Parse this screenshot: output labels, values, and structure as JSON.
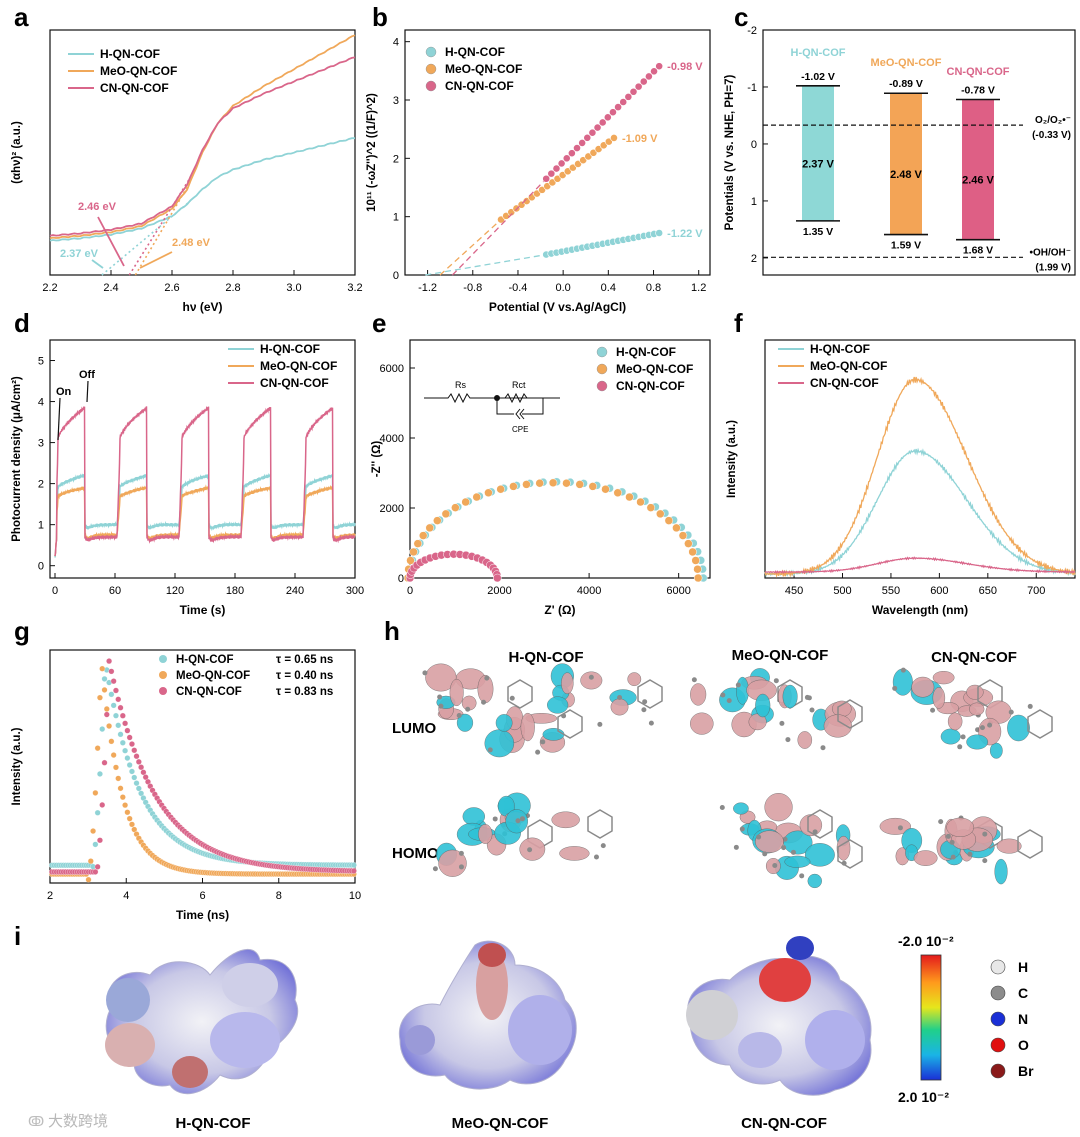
{
  "colors": {
    "h": "#8fd3d6",
    "meo": "#f0a85a",
    "cn": "#d9668a",
    "axis": "#111111",
    "h_bar": "#8ed8d6",
    "meo_bar": "#f3a456",
    "cn_bar": "#de5f85"
  },
  "panel_letters": {
    "a": "a",
    "b": "b",
    "c": "c",
    "d": "d",
    "e": "e",
    "f": "f",
    "g": "g",
    "h": "h",
    "i": "i"
  },
  "legend_names": [
    "H-QN-COF",
    "MeO-QN-COF",
    "CN-QN-COF"
  ],
  "chart_data": [
    {
      "id": "a",
      "type": "line",
      "xlabel": "hν (eV)",
      "ylabel": "(αhν)² (a.u.)",
      "xlim": [
        2.2,
        3.2
      ],
      "ylim": [
        0,
        1
      ],
      "xticks": [
        "2.2",
        "2.4",
        "2.6",
        "2.8",
        "3.0",
        "3.2"
      ],
      "series": [
        {
          "name": "H-QN-COF",
          "x": [
            2.2,
            2.3,
            2.4,
            2.5,
            2.6,
            2.65,
            2.7,
            2.75,
            2.8,
            2.9,
            3.0,
            3.1,
            3.2
          ],
          "y": [
            0.14,
            0.15,
            0.165,
            0.19,
            0.24,
            0.29,
            0.35,
            0.4,
            0.43,
            0.47,
            0.5,
            0.53,
            0.56
          ]
        },
        {
          "name": "MeO-QN-COF",
          "x": [
            2.2,
            2.3,
            2.4,
            2.5,
            2.6,
            2.65,
            2.7,
            2.75,
            2.8,
            2.9,
            3.0,
            3.1,
            3.2
          ],
          "y": [
            0.15,
            0.16,
            0.175,
            0.2,
            0.27,
            0.35,
            0.5,
            0.62,
            0.69,
            0.77,
            0.84,
            0.91,
            0.98
          ]
        },
        {
          "name": "CN-QN-COF",
          "x": [
            2.2,
            2.3,
            2.4,
            2.5,
            2.6,
            2.65,
            2.7,
            2.75,
            2.8,
            2.9,
            3.0,
            3.1,
            3.2
          ],
          "y": [
            0.16,
            0.17,
            0.185,
            0.21,
            0.28,
            0.37,
            0.51,
            0.62,
            0.68,
            0.74,
            0.79,
            0.84,
            0.89
          ]
        }
      ],
      "annotations": [
        {
          "text": "2.46 eV",
          "series": 2,
          "x": 2.46
        },
        {
          "text": "2.37 eV",
          "series": 0,
          "x": 2.37
        },
        {
          "text": "2.48 eV",
          "series": 1,
          "x": 2.48
        }
      ]
    },
    {
      "id": "b",
      "type": "scatter",
      "xlabel": "Potential (V vs.Ag/AgCl)",
      "ylabel": "10¹¹ (-ωZ'')^2 ((1/F)^2)",
      "xlim": [
        -1.4,
        1.3
      ],
      "ylim": [
        0,
        4.2
      ],
      "xticks": [
        "-1.2",
        "-0.8",
        "-0.4",
        "0.0",
        "0.4",
        "0.8",
        "1.2"
      ],
      "yticks": [
        "0",
        "1",
        "2",
        "3",
        "4"
      ],
      "series": [
        {
          "name": "H-QN-COF",
          "x_start": -0.15,
          "x_end": 0.85,
          "y_start": 0.35,
          "y_end": 0.72,
          "fb": "-1.22 V",
          "fb_x": -1.22
        },
        {
          "name": "MeO-QN-COF",
          "x_start": -0.55,
          "x_end": 0.45,
          "y_start": 0.95,
          "y_end": 2.35,
          "fb": "-1.09 V",
          "fb_x": -1.09
        },
        {
          "name": "CN-QN-COF",
          "x_start": -0.15,
          "x_end": 0.85,
          "y_start": 1.65,
          "y_end": 3.58,
          "fb": "-0.98 V",
          "fb_x": -0.98
        }
      ]
    },
    {
      "id": "c",
      "type": "bar",
      "ylabel": "Potentials (V vs. NHE, PH=7)",
      "ylim": [
        -2,
        2.3
      ],
      "yticks": [
        "-2",
        "-1",
        "0",
        "1",
        "2"
      ],
      "bars": [
        {
          "name": "H-QN-COF",
          "cb": -1.02,
          "vb": 1.35,
          "cb_label": "-1.02 V",
          "vb_label": "1.35 V",
          "gap": "2.37 V"
        },
        {
          "name": "MeO-QN-COF",
          "cb": -0.89,
          "vb": 1.59,
          "cb_label": "-0.89 V",
          "vb_label": "1.59 V",
          "gap": "2.48 V"
        },
        {
          "name": "CN-QN-COF",
          "cb": -0.78,
          "vb": 1.68,
          "cb_label": "-0.78 V",
          "vb_label": "1.68 V",
          "gap": "2.46 V"
        }
      ],
      "reference_lines": [
        {
          "value": -0.33,
          "label": "O₂/O₂•⁻",
          "sub": "(-0.33 V)"
        },
        {
          "value": 1.99,
          "label": "•OH/OH⁻",
          "sub": "(1.99 V)"
        }
      ]
    },
    {
      "id": "d",
      "type": "line",
      "xlabel": "Time (s)",
      "ylabel": "Photocurrent density (μA/cm²)",
      "xlim": [
        -5,
        300
      ],
      "ylim": [
        -0.3,
        5.5
      ],
      "xticks": [
        "0",
        "60",
        "120",
        "180",
        "240",
        "300"
      ],
      "yticks": [
        "0",
        "1",
        "2",
        "3",
        "4",
        "5"
      ],
      "on_off_labels": [
        "On",
        "Off"
      ],
      "cycle_period_s": 62,
      "on_duration_s": 30,
      "series": [
        {
          "name": "H-QN-COF",
          "dark": 1.0,
          "light_start": 1.8,
          "light_end": 2.2
        },
        {
          "name": "MeO-QN-COF",
          "dark": 0.75,
          "light_start": 1.6,
          "light_end": 1.9
        },
        {
          "name": "CN-QN-COF",
          "dark": 0.7,
          "light_start": 2.8,
          "light_end": 3.85
        }
      ]
    },
    {
      "id": "e",
      "type": "scatter",
      "xlabel": "Z' (Ω)",
      "ylabel": "-Z'' (Ω)",
      "xlim": [
        0,
        6700
      ],
      "ylim": [
        0,
        6800
      ],
      "xticks": [
        "0",
        "2000",
        "4000",
        "6000"
      ],
      "yticks": [
        "0",
        "2000",
        "4000",
        "6000"
      ],
      "circuit_labels": {
        "rs": "Rs",
        "rct": "Rct",
        "cpe": "CPE"
      },
      "series": [
        {
          "name": "H-QN-COF",
          "z_start": 0,
          "z_end": 6550,
          "height": 2750
        },
        {
          "name": "MeO-QN-COF",
          "z_start": 0,
          "z_end": 6480,
          "height": 2720
        },
        {
          "name": "CN-QN-COF",
          "z_start": 0,
          "z_end": 1950,
          "height": 680
        }
      ]
    },
    {
      "id": "f",
      "type": "line",
      "xlabel": "Wavelength (nm)",
      "ylabel": "Intensity (a.u.)",
      "xlim": [
        420,
        740
      ],
      "ylim": [
        0,
        1.2
      ],
      "xticks": [
        "450",
        "500",
        "550",
        "600",
        "650",
        "700"
      ],
      "series": [
        {
          "name": "H-QN-COF",
          "peak_nm": 575,
          "peak": 0.62,
          "base": 0.02
        },
        {
          "name": "MeO-QN-COF",
          "peak_nm": 575,
          "peak": 0.98,
          "base": 0.02
        },
        {
          "name": "CN-QN-COF",
          "peak_nm": 575,
          "peak": 0.07,
          "base": 0.03
        }
      ]
    },
    {
      "id": "g",
      "type": "scatter",
      "xlabel": "Time (ns)",
      "ylabel": "Intensity (a.u.)",
      "xlim": [
        2,
        10
      ],
      "ylim": [
        0,
        1.05
      ],
      "xticks": [
        "2",
        "4",
        "6",
        "8",
        "10"
      ],
      "series": [
        {
          "name": "H-QN-COF",
          "tau": "τ = 0.65 ns",
          "peak_t": 3.45,
          "baseline": 0.05
        },
        {
          "name": "MeO-QN-COF",
          "tau": "τ = 0.40 ns",
          "peak_t": 3.35,
          "baseline": 0.01
        },
        {
          "name": "CN-QN-COF",
          "tau": "τ = 0.83 ns",
          "peak_t": 3.55,
          "baseline": 0.02
        }
      ]
    }
  ],
  "panel_h": {
    "columns": [
      "H-QN-COF",
      "MeO-QN-COF",
      "CN-QN-COF"
    ],
    "rows": [
      "LUMO",
      "HOMO"
    ]
  },
  "panel_i": {
    "labels": [
      "H-QN-COF",
      "MeO-QN-COF",
      "CN-QN-COF"
    ],
    "scale_top": "-2.0 10⁻²",
    "scale_bottom": "2.0 10⁻²",
    "atoms": [
      {
        "symbol": "H",
        "color": "#e8e8e8"
      },
      {
        "symbol": "C",
        "color": "#8c8c8c"
      },
      {
        "symbol": "N",
        "color": "#1a2fd6"
      },
      {
        "symbol": "O",
        "color": "#e01010"
      },
      {
        "symbol": "Br",
        "color": "#8a1a1a"
      }
    ]
  },
  "watermark": "大数跨境"
}
